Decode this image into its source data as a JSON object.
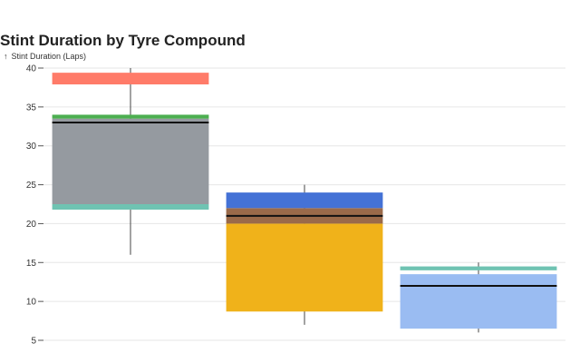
{
  "chart_data": {
    "type": "box",
    "title": "Stint Duration by Tyre Compound",
    "ylabel": "Stint Duration (Laps)",
    "ylim": [
      4,
      40
    ],
    "yticks": [
      5,
      10,
      15,
      20,
      25,
      30,
      35,
      40
    ],
    "grid": true,
    "legend": "none",
    "categories": [
      "",
      "",
      ""
    ],
    "boxes": [
      {
        "whisker_low": 16,
        "whisker_high": 40,
        "median": 33,
        "bands": [
          {
            "low": 21.8,
            "high": 22.5,
            "color": "#6fc3b2"
          },
          {
            "low": 22.5,
            "high": 33.5,
            "color": "#959aa0"
          },
          {
            "low": 33.5,
            "high": 34.0,
            "color": "#4caf50"
          },
          {
            "low": 37.9,
            "high": 39.4,
            "color": "#ff7b69"
          }
        ]
      },
      {
        "whisker_low": 7,
        "whisker_high": 25,
        "median": 21,
        "bands": [
          {
            "low": 8.7,
            "high": 20.0,
            "color": "#f0b21a"
          },
          {
            "low": 20.0,
            "high": 22.0,
            "color": "#9a6a4a"
          },
          {
            "low": 22.0,
            "high": 24.0,
            "color": "#4472d6"
          }
        ]
      },
      {
        "whisker_low": 6,
        "whisker_high": 15,
        "median": 12,
        "bands": [
          {
            "low": 6.5,
            "high": 13.5,
            "color": "#9abcf2"
          },
          {
            "low": 14.0,
            "high": 14.5,
            "color": "#6fc3b2"
          }
        ]
      }
    ]
  }
}
